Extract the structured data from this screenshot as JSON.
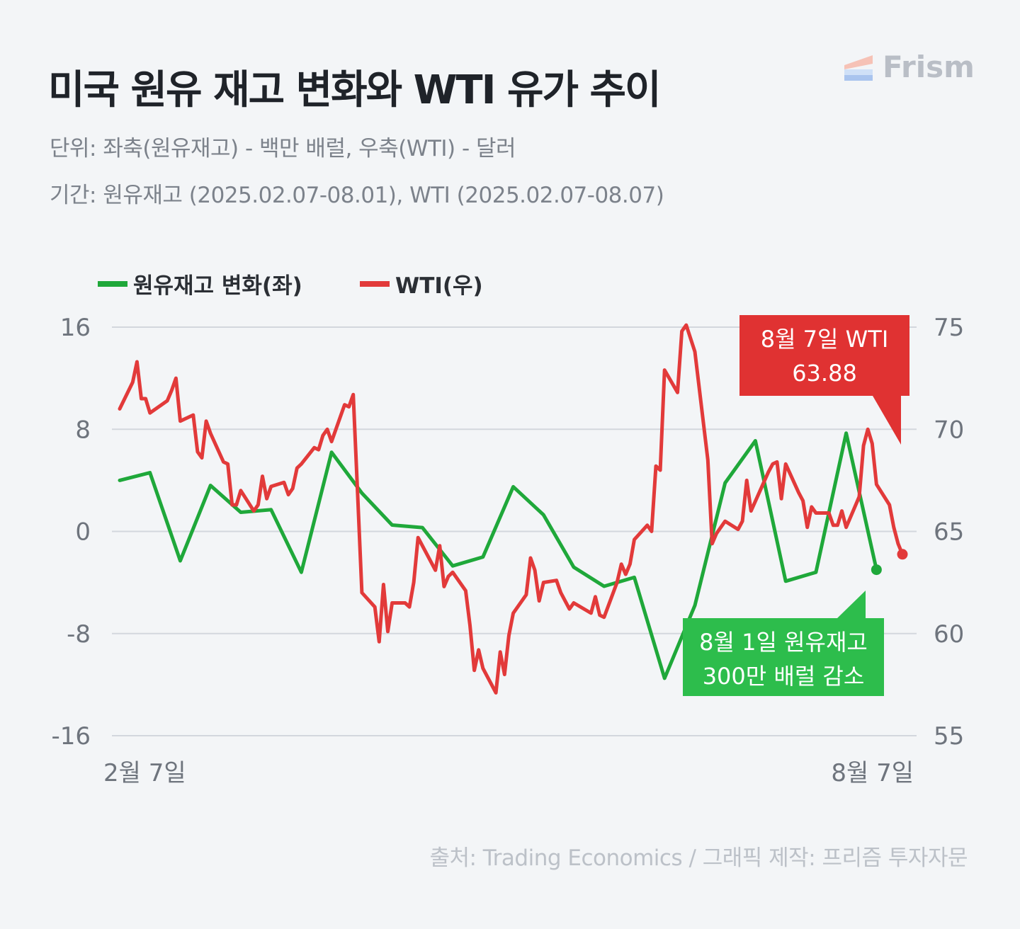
{
  "header": {
    "title": "미국 원유 재고 변화와 WTI 유가 추이",
    "unit_line": "단위: 좌축(원유재고) - 백만 배럴, 우축(WTI) - 달러",
    "period_line": "기간: 원유재고 (2025.02.07-08.01), WTI (2025.02.07-08.07)"
  },
  "logo": {
    "text": "Frism",
    "icon": "frism-logo-icon"
  },
  "source": "출처: Trading Economics / 그래픽 제작: 프리즘 투자자문",
  "colors": {
    "inventory": "#1fa83a",
    "wti": "#e23a3a",
    "grid": "#d3d7dd",
    "green_box": "#2dbd4c",
    "red_box": "#e03232"
  },
  "chart_data": {
    "type": "line",
    "x_start_label": "2월 7일",
    "x_end_label": "8월 7일",
    "left_axis": {
      "ylim": [
        -16,
        16
      ],
      "ticks": [
        "16",
        "8",
        "0",
        "-8",
        "-16"
      ]
    },
    "right_axis": {
      "ylim": [
        55,
        75
      ],
      "ticks": [
        "75",
        "70",
        "65",
        "60",
        "55"
      ]
    },
    "grid": true,
    "legend_position": "top-left",
    "series": [
      {
        "name": "원유재고 변화(좌)",
        "axis": "left",
        "x": [
          "2025-02-07",
          "2025-02-14",
          "2025-02-21",
          "2025-02-28",
          "2025-03-07",
          "2025-03-14",
          "2025-03-21",
          "2025-03-28",
          "2025-04-04",
          "2025-04-11",
          "2025-04-18",
          "2025-04-25",
          "2025-05-02",
          "2025-05-09",
          "2025-05-16",
          "2025-05-23",
          "2025-05-30",
          "2025-06-06",
          "2025-06-13",
          "2025-06-20",
          "2025-06-27",
          "2025-07-04",
          "2025-07-11",
          "2025-07-18",
          "2025-07-25",
          "2025-08-01"
        ],
        "values": [
          4.0,
          4.6,
          -2.3,
          3.6,
          1.5,
          1.7,
          -3.2,
          6.2,
          3.0,
          0.5,
          0.3,
          -2.7,
          -2.0,
          3.5,
          1.3,
          -2.8,
          -4.3,
          -3.6,
          -11.5,
          -5.8,
          3.8,
          7.1,
          -3.9,
          -3.2,
          7.7,
          -3.0
        ]
      },
      {
        "name": "WTI(우)",
        "axis": "right",
        "x": [
          "2025-02-07",
          "2025-02-10",
          "2025-02-11",
          "2025-02-12",
          "2025-02-13",
          "2025-02-14",
          "2025-02-18",
          "2025-02-19",
          "2025-02-20",
          "2025-02-21",
          "2025-02-24",
          "2025-02-25",
          "2025-02-26",
          "2025-02-27",
          "2025-02-28",
          "2025-03-03",
          "2025-03-04",
          "2025-03-05",
          "2025-03-06",
          "2025-03-07",
          "2025-03-10",
          "2025-03-11",
          "2025-03-12",
          "2025-03-13",
          "2025-03-14",
          "2025-03-17",
          "2025-03-18",
          "2025-03-19",
          "2025-03-20",
          "2025-03-21",
          "2025-03-24",
          "2025-03-25",
          "2025-03-26",
          "2025-03-27",
          "2025-03-28",
          "2025-03-31",
          "2025-04-01",
          "2025-04-02",
          "2025-04-03",
          "2025-04-04",
          "2025-04-07",
          "2025-04-08",
          "2025-04-09",
          "2025-04-10",
          "2025-04-11",
          "2025-04-14",
          "2025-04-15",
          "2025-04-16",
          "2025-04-17",
          "2025-04-21",
          "2025-04-22",
          "2025-04-23",
          "2025-04-24",
          "2025-04-25",
          "2025-04-28",
          "2025-04-29",
          "2025-04-30",
          "2025-05-01",
          "2025-05-02",
          "2025-05-05",
          "2025-05-06",
          "2025-05-07",
          "2025-05-08",
          "2025-05-09",
          "2025-05-12",
          "2025-05-13",
          "2025-05-14",
          "2025-05-15",
          "2025-05-16",
          "2025-05-19",
          "2025-05-20",
          "2025-05-21",
          "2025-05-22",
          "2025-05-23",
          "2025-05-27",
          "2025-05-28",
          "2025-05-29",
          "2025-05-30",
          "2025-06-02",
          "2025-06-03",
          "2025-06-04",
          "2025-06-05",
          "2025-06-06",
          "2025-06-09",
          "2025-06-10",
          "2025-06-11",
          "2025-06-12",
          "2025-06-13",
          "2025-06-16",
          "2025-06-17",
          "2025-06-18",
          "2025-06-20",
          "2025-06-23",
          "2025-06-24",
          "2025-06-25",
          "2025-06-26",
          "2025-06-27",
          "2025-06-30",
          "2025-07-01",
          "2025-07-02",
          "2025-07-03",
          "2025-07-07",
          "2025-07-08",
          "2025-07-09",
          "2025-07-10",
          "2025-07-11",
          "2025-07-14",
          "2025-07-15",
          "2025-07-16",
          "2025-07-17",
          "2025-07-18",
          "2025-07-21",
          "2025-07-22",
          "2025-07-23",
          "2025-07-24",
          "2025-07-25",
          "2025-07-28",
          "2025-07-29",
          "2025-07-30",
          "2025-07-31",
          "2025-08-01",
          "2025-08-04",
          "2025-08-05",
          "2025-08-06",
          "2025-08-07"
        ],
        "values": [
          71.0,
          72.3,
          73.3,
          71.5,
          71.5,
          70.8,
          71.4,
          71.9,
          72.5,
          70.4,
          70.7,
          68.9,
          68.6,
          70.4,
          69.8,
          68.4,
          68.3,
          66.3,
          66.3,
          67.0,
          66.0,
          66.3,
          67.7,
          66.6,
          67.2,
          67.4,
          66.8,
          67.1,
          68.1,
          68.3,
          69.1,
          69.0,
          69.7,
          70.0,
          69.4,
          71.2,
          71.1,
          71.7,
          66.9,
          62.0,
          61.3,
          59.6,
          62.4,
          60.1,
          61.5,
          61.5,
          61.3,
          62.5,
          64.7,
          63.1,
          64.3,
          62.3,
          62.8,
          63.0,
          62.1,
          60.4,
          58.2,
          59.2,
          58.3,
          57.1,
          59.1,
          58.0,
          59.9,
          61.0,
          61.9,
          63.7,
          63.1,
          61.6,
          62.5,
          62.6,
          62.0,
          61.6,
          61.2,
          61.5,
          61.0,
          61.8,
          60.9,
          60.8,
          62.5,
          63.4,
          62.9,
          63.4,
          64.6,
          65.3,
          65.0,
          68.2,
          68.0,
          72.9,
          71.8,
          74.8,
          75.1,
          73.8,
          68.5,
          64.4,
          64.9,
          65.2,
          65.5,
          65.1,
          65.5,
          67.5,
          66.0,
          67.9,
          68.3,
          68.4,
          66.6,
          68.3,
          66.9,
          66.5,
          65.2,
          66.2,
          65.9,
          65.9,
          65.3,
          65.3,
          66.0,
          65.2,
          66.7,
          69.2,
          70.0,
          69.3,
          67.3,
          66.3,
          65.2,
          64.4,
          63.88
        ]
      }
    ],
    "annotations": [
      {
        "series": "WTI(우)",
        "text_line1": "8월 7일 WTI",
        "text_line2": "63.88"
      },
      {
        "series": "원유재고 변화(좌)",
        "text_line1": "8월 1일 원유재고",
        "text_line2": "300만 배럴 감소"
      }
    ]
  }
}
